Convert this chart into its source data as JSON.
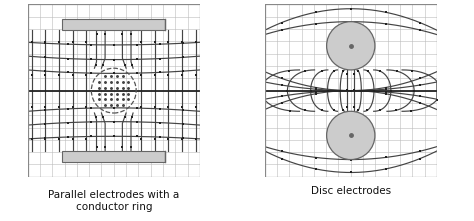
{
  "fig_width": 4.74,
  "fig_height": 2.21,
  "dpi": 100,
  "background": "#ffffff",
  "grid_color": "#bbbbbb",
  "line_color": "#444444",
  "electrode_facecolor": "#cccccc",
  "electrode_edgecolor": "#666666",
  "ring_edgecolor": "#555555",
  "dot_color": "#444444",
  "center_line_color": "#222222",
  "border_color": "#888888",
  "marker_color": "#222222",
  "label1": "Parallel electrodes with a\nconductor ring",
  "label2": "Disc electrodes",
  "label_fontsize": 7.5
}
